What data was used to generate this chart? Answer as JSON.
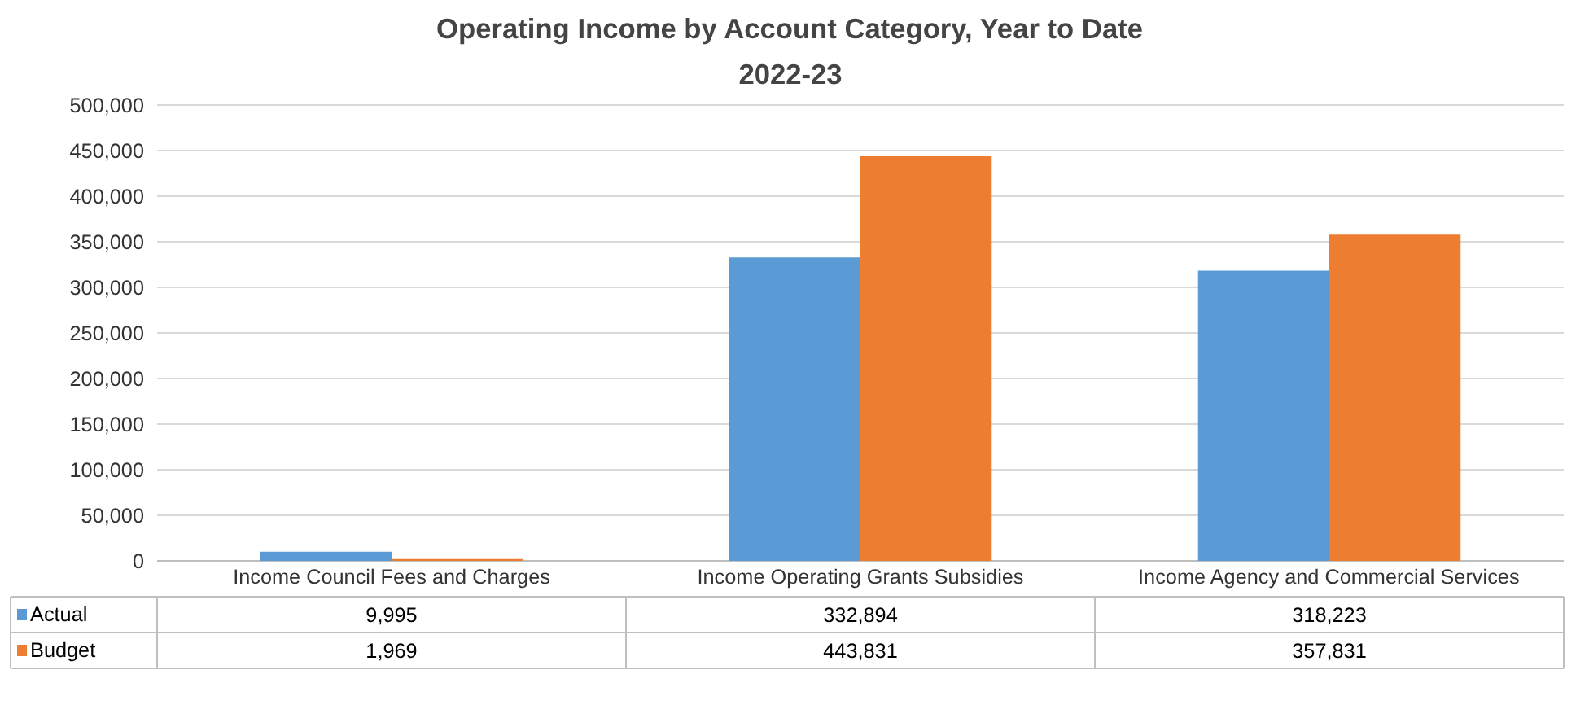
{
  "chart_data": {
    "type": "bar",
    "title": "Operating Income by Account Category, Year to Date",
    "subtitle": "2022-23",
    "categories": [
      "Income Council Fees and Charges",
      "Income Operating Grants Subsidies",
      "Income Agency and Commercial Services"
    ],
    "series": [
      {
        "name": "Actual",
        "color": "#5b9bd5",
        "values": [
          9995,
          332894,
          318223
        ],
        "value_labels": [
          "9,995",
          "332,894",
          "318,223"
        ]
      },
      {
        "name": "Budget",
        "color": "#ed7d31",
        "values": [
          1969,
          443831,
          357831
        ],
        "value_labels": [
          "1,969",
          "443,831",
          "357,831"
        ]
      }
    ],
    "ylim": [
      0,
      500000
    ],
    "yticks": [
      {
        "value": 0,
        "label": "0"
      },
      {
        "value": 50000,
        "label": "50,000"
      },
      {
        "value": 100000,
        "label": "100,000"
      },
      {
        "value": 150000,
        "label": "150,000"
      },
      {
        "value": 200000,
        "label": "200,000"
      },
      {
        "value": 250000,
        "label": "250,000"
      },
      {
        "value": 300000,
        "label": "300,000"
      },
      {
        "value": 350000,
        "label": "350,000"
      },
      {
        "value": 400000,
        "label": "400,000"
      },
      {
        "value": 450000,
        "label": "450,000"
      },
      {
        "value": 500000,
        "label": "500,000"
      }
    ],
    "grid": "y",
    "legend": "bottom"
  }
}
